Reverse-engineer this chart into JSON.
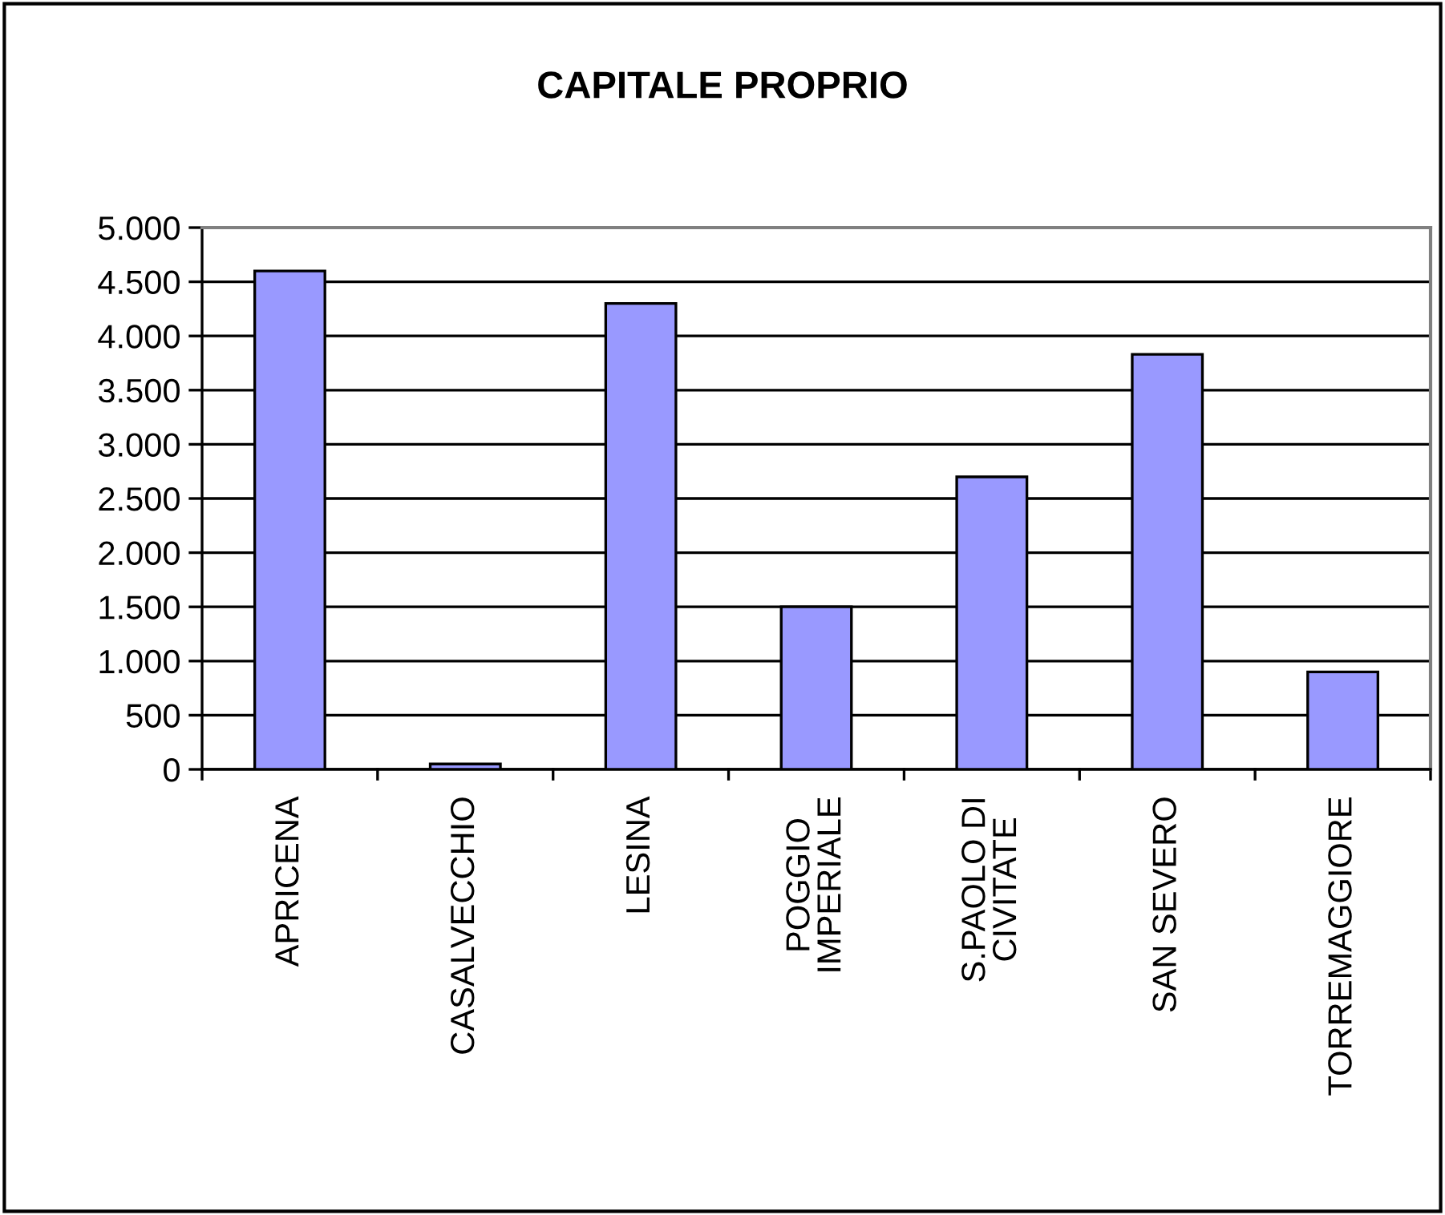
{
  "chart_data": {
    "type": "bar",
    "title": "CAPITALE PROPRIO",
    "categories": [
      "APRICENA",
      "CASALVECCHIO",
      "LESINA",
      "POGGIO\nIMPERIALE",
      "S.PAOLO DI\nCIVITATE",
      "SAN SEVERO",
      "TORREMAGGIORE"
    ],
    "values": [
      4600,
      50,
      4300,
      1500,
      2700,
      3830,
      900
    ],
    "color": "#9999ff",
    "ylim": [
      0,
      5000
    ],
    "yticks": [
      {
        "value": 0,
        "label": "0"
      },
      {
        "value": 500,
        "label": "500"
      },
      {
        "value": 1000,
        "label": "1.000"
      },
      {
        "value": 1500,
        "label": "1.500"
      },
      {
        "value": 2000,
        "label": "2.000"
      },
      {
        "value": 2500,
        "label": "2.500"
      },
      {
        "value": 3000,
        "label": "3.000"
      },
      {
        "value": 3500,
        "label": "3.500"
      },
      {
        "value": 4000,
        "label": "4.000"
      },
      {
        "value": 4500,
        "label": "4.500"
      },
      {
        "value": 5000,
        "label": "5.000"
      }
    ],
    "grid": "y",
    "legend": false
  }
}
